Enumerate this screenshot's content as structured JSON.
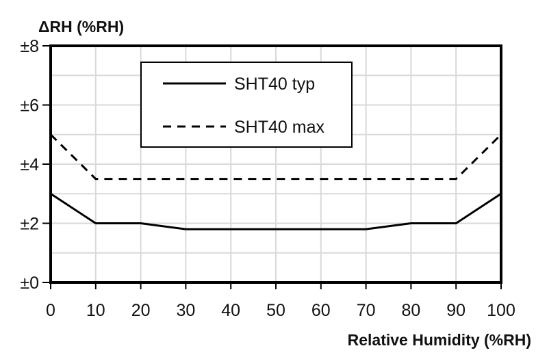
{
  "chart_data": {
    "type": "line",
    "title": "",
    "xlabel": "Relative Humidity (%RH)",
    "ylabel": "ΔRH (%RH)",
    "x": [
      0,
      10,
      20,
      30,
      40,
      50,
      60,
      70,
      80,
      90,
      100
    ],
    "series": [
      {
        "name": "SHT40 typ",
        "style": "solid",
        "values": [
          3,
          2,
          2,
          1.8,
          1.8,
          1.8,
          1.8,
          1.8,
          2,
          2,
          3
        ]
      },
      {
        "name": "SHT40 max",
        "style": "dashed",
        "values": [
          5,
          3.5,
          3.5,
          3.5,
          3.5,
          3.5,
          3.5,
          3.5,
          3.5,
          3.5,
          5
        ]
      }
    ],
    "xlim": [
      0,
      100
    ],
    "ylim": [
      0,
      8
    ],
    "x_ticks": [
      "0",
      "10",
      "20",
      "30",
      "40",
      "50",
      "60",
      "70",
      "80",
      "90",
      "100"
    ],
    "y_ticks": [
      "±0",
      "±2",
      "±4",
      "±6",
      "±8"
    ],
    "grid": true,
    "legend_position": "upper center (inside)"
  },
  "legend": {
    "typ": "SHT40 typ",
    "max": "SHT40 max"
  },
  "axes": {
    "xlabel": "Relative Humidity (%RH)",
    "ylabel": "ΔRH (%RH)"
  }
}
